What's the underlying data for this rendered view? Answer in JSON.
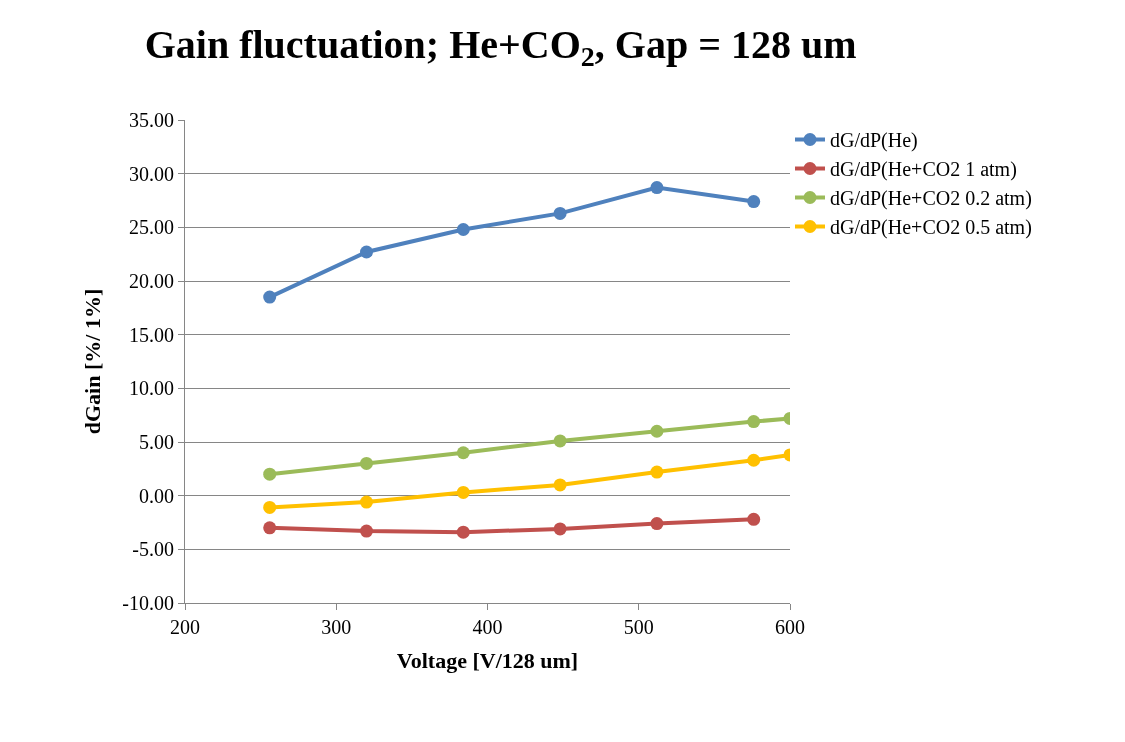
{
  "chart_data": {
    "type": "line",
    "title": "Gain fluctuation; He+CO$_{2}$, Gap = 128 um",
    "xlabel": "Voltage [V/128 um]",
    "ylabel": "dGain [%/ 1%]",
    "x": [
      256,
      320,
      384,
      448,
      512,
      576
    ],
    "series": [
      {
        "name": "dG/dP(He)",
        "color": "#4f81bd",
        "values": [
          18.5,
          22.7,
          24.8,
          26.3,
          28.7,
          27.4
        ]
      },
      {
        "name": "dG/dP(He+CO2 1 atm)",
        "color": "#c0504d",
        "values": [
          -3.0,
          -3.3,
          -3.4,
          -3.1,
          -2.6,
          -2.2
        ]
      },
      {
        "name": "dG/dP(He+CO2 0.2 atm)",
        "color": "#9bbb59",
        "x": [
          256,
          320,
          384,
          448,
          512,
          576,
          600
        ],
        "values": [
          2.0,
          3.0,
          4.0,
          5.1,
          6.0,
          6.9,
          7.2
        ]
      },
      {
        "name": "dG/dP(He+CO2 0.5 atm)",
        "color": "#ffc000",
        "x": [
          256,
          320,
          384,
          448,
          512,
          576,
          600
        ],
        "values": [
          -1.1,
          -0.6,
          0.3,
          1.0,
          2.2,
          3.3,
          3.8
        ]
      }
    ],
    "xlim": [
      200,
      600
    ],
    "xticks": [
      200,
      300,
      400,
      500,
      600
    ],
    "ylim": [
      -10,
      35
    ],
    "yticks": [
      {
        "value": -10,
        "label": "-10.00"
      },
      {
        "value": -5,
        "label": "-5.00"
      },
      {
        "value": 0,
        "label": "0.00"
      },
      {
        "value": 5,
        "label": "5.00"
      },
      {
        "value": 10,
        "label": "10.00"
      },
      {
        "value": 15,
        "label": "15.00"
      },
      {
        "value": 20,
        "label": "20.00"
      },
      {
        "value": 25,
        "label": "25.00"
      },
      {
        "value": 30,
        "label": "30.00"
      },
      {
        "value": 35,
        "label": "35.00"
      }
    ],
    "grid": "y",
    "legend": "top right",
    "marker": "circle",
    "line_style": "solid"
  }
}
